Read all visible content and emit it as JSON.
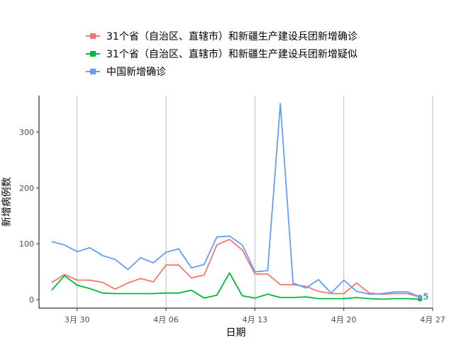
{
  "chart_data": {
    "type": "line",
    "title": "",
    "xlabel": "日期",
    "ylabel": "新增病例数",
    "x_start": "2020-03-28",
    "x_ticks": [
      {
        "label": "3月 30",
        "date": "2020-03-30"
      },
      {
        "label": "4月 06",
        "date": "2020-04-06"
      },
      {
        "label": "4月 13",
        "date": "2020-04-13"
      },
      {
        "label": "4月 20",
        "date": "2020-04-20"
      },
      {
        "label": "4月 27",
        "date": "2020-04-27"
      }
    ],
    "y_ticks": [
      0,
      100,
      200,
      300
    ],
    "xlim": [
      "2020-03-27",
      "2020-04-27"
    ],
    "ylim": [
      -15,
      365
    ],
    "grid": "vertical-major",
    "legend_position": "top",
    "end_label": "5",
    "series": [
      {
        "name": "31个省（自治区、直辖市）和新疆生产建设兵团新增确诊",
        "color": "#F8766D",
        "values": [
          31,
          45,
          35,
          35,
          31,
          19,
          30,
          38,
          32,
          62,
          62,
          39,
          44,
          98,
          108,
          89,
          46,
          46,
          27,
          27,
          24,
          15,
          11,
          11,
          30,
          12,
          10,
          11,
          11,
          5
        ]
      },
      {
        "name": "31个省（自治区、直辖市）和新疆生产建设兵团新增疑似",
        "color": "#00BA38",
        "values": [
          17,
          43,
          26,
          20,
          12,
          11,
          11,
          11,
          11,
          12,
          12,
          17,
          3,
          8,
          48,
          7,
          3,
          10,
          4,
          4,
          5,
          2,
          2,
          2,
          4,
          2,
          1,
          2,
          2,
          1
        ]
      },
      {
        "name": "中国新增确诊",
        "color": "#619CFF",
        "values": [
          104,
          98,
          86,
          93,
          79,
          72,
          54,
          75,
          66,
          85,
          91,
          57,
          63,
          112,
          114,
          98,
          50,
          52,
          351,
          30,
          21,
          36,
          12,
          35,
          15,
          10,
          11,
          14,
          14,
          5
        ]
      }
    ]
  }
}
